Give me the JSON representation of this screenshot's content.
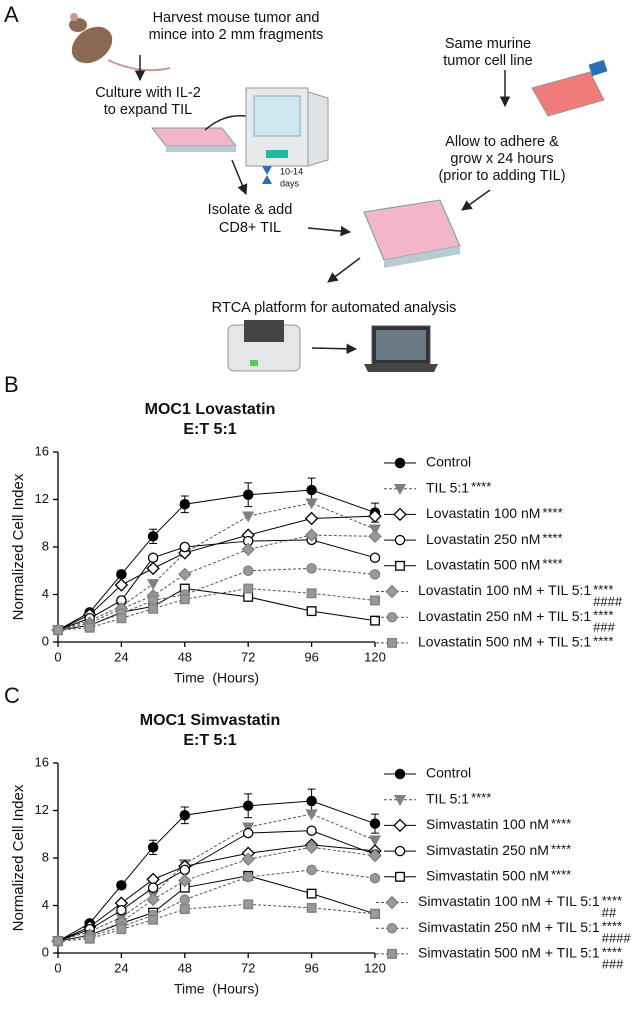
{
  "panel_a": {
    "label": "A",
    "harvest": [
      "Harvest mouse tumor and",
      "mince into 2 mm fragments"
    ],
    "culture": [
      "Culture with IL-2",
      "to expand TIL"
    ],
    "days": [
      "10-14",
      "days"
    ],
    "same_line": [
      "Same murine",
      "tumor cell line"
    ],
    "adhere": [
      "Allow to adhere &",
      "grow x 24 hours",
      "(prior to adding TIL)"
    ],
    "isolate": [
      "Isolate & add",
      "CD8+ TIL"
    ],
    "rtca": "RTCA platform for automated analysis"
  },
  "chart_data": [
    {
      "type": "line",
      "panel_label": "B",
      "title": "MOC1 Lovastatin",
      "subtitle": "E:T 5:1",
      "x_label": "Time  (Hours)",
      "y_label": "Normalized Cell Index",
      "x": [
        0,
        12,
        24,
        36,
        48,
        72,
        96,
        120
      ],
      "xlim": [
        0,
        120
      ],
      "ylim": [
        0,
        16
      ],
      "xticks": [
        0,
        24,
        48,
        72,
        96,
        120
      ],
      "yticks": [
        0,
        4,
        8,
        12,
        16
      ],
      "series": [
        {
          "name": "Control",
          "marker": "circle",
          "color": "#000000",
          "fill": "#000000",
          "dashed": false,
          "values": [
            1,
            2.5,
            5.7,
            8.9,
            11.6,
            12.4,
            12.8,
            10.9
          ],
          "errors": [
            0.1,
            0.2,
            0.3,
            0.6,
            0.7,
            1.0,
            1.0,
            0.8
          ]
        },
        {
          "name": "TIL 5:1",
          "annotation": [
            "****"
          ],
          "marker": "triangle",
          "color": "#808080",
          "fill": "#808080",
          "dashed": true,
          "values": [
            1,
            1.8,
            3.0,
            4.9,
            7.5,
            10.6,
            11.7,
            9.5
          ]
        },
        {
          "name": "Lovastatin 100 nM",
          "annotation": [
            "****"
          ],
          "marker": "diamond",
          "color": "#000000",
          "fill": "#ffffff",
          "dashed": false,
          "values": [
            1,
            2.3,
            4.8,
            6.2,
            7.5,
            9.0,
            10.4,
            10.6
          ]
        },
        {
          "name": "Lovastatin 250 nM",
          "annotation": [
            "****"
          ],
          "marker": "circle",
          "color": "#000000",
          "fill": "#ffffff",
          "dashed": false,
          "values": [
            1,
            2.0,
            3.5,
            7.1,
            8.0,
            8.5,
            8.6,
            7.1
          ]
        },
        {
          "name": "Lovastatin 500 nM",
          "annotation": [
            "****"
          ],
          "marker": "square",
          "color": "#000000",
          "fill": "#ffffff",
          "dashed": false,
          "values": [
            1,
            1.4,
            2.5,
            3.0,
            4.5,
            3.8,
            2.6,
            1.8
          ]
        },
        {
          "name": "Lovastatin 100 nM + TIL 5:1",
          "annotation": [
            "****",
            "####"
          ],
          "marker": "diamond",
          "color": "#808080",
          "fill": "#999999",
          "dashed": true,
          "values": [
            1,
            1.6,
            2.8,
            3.9,
            5.7,
            7.8,
            9.0,
            8.9
          ]
        },
        {
          "name": "Lovastatin 250 nM + TIL 5:1",
          "annotation": [
            "****",
            "###"
          ],
          "marker": "circle",
          "color": "#808080",
          "fill": "#999999",
          "dashed": true,
          "values": [
            1,
            1.4,
            2.4,
            3.5,
            4.0,
            6.0,
            6.2,
            5.7
          ]
        },
        {
          "name": "Lovastatin 500 nM + TIL 5:1",
          "annotation": [
            "****"
          ],
          "marker": "square",
          "color": "#808080",
          "fill": "#999999",
          "dashed": true,
          "values": [
            1,
            1.2,
            2.0,
            2.8,
            3.6,
            4.5,
            4.1,
            3.5
          ]
        }
      ]
    },
    {
      "type": "line",
      "panel_label": "C",
      "title": "MOC1 Simvastatin",
      "subtitle": "E:T 5:1",
      "x_label": "Time  (Hours)",
      "y_label": "Normalized Cell Index",
      "x": [
        0,
        12,
        24,
        36,
        48,
        72,
        96,
        120
      ],
      "xlim": [
        0,
        120
      ],
      "ylim": [
        0,
        16
      ],
      "xticks": [
        0,
        24,
        48,
        72,
        96,
        120
      ],
      "yticks": [
        0,
        4,
        8,
        12,
        16
      ],
      "series": [
        {
          "name": "Control",
          "marker": "circle",
          "color": "#000000",
          "fill": "#000000",
          "dashed": false,
          "values": [
            1,
            2.5,
            5.7,
            8.9,
            11.6,
            12.4,
            12.8,
            10.9
          ],
          "errors": [
            0.1,
            0.2,
            0.3,
            0.6,
            0.7,
            1.0,
            1.0,
            0.8
          ]
        },
        {
          "name": "TIL 5:1",
          "annotation": [
            "****"
          ],
          "marker": "triangle",
          "color": "#808080",
          "fill": "#808080",
          "dashed": true,
          "values": [
            1,
            1.8,
            3.0,
            4.9,
            7.5,
            10.6,
            11.7,
            9.5
          ]
        },
        {
          "name": "Simvastatin 100 nM",
          "annotation": [
            "****"
          ],
          "marker": "diamond",
          "color": "#000000",
          "fill": "#ffffff",
          "dashed": false,
          "values": [
            1,
            2.2,
            4.2,
            6.2,
            7.3,
            8.4,
            9.1,
            8.6
          ]
        },
        {
          "name": "Simvastatin 250 nM",
          "annotation": [
            "****"
          ],
          "marker": "circle",
          "color": "#000000",
          "fill": "#ffffff",
          "dashed": false,
          "values": [
            1,
            2.0,
            3.6,
            5.5,
            7.0,
            10.1,
            10.3,
            8.3
          ]
        },
        {
          "name": "Simvastatin 500 nM",
          "annotation": [
            "****"
          ],
          "marker": "square",
          "color": "#000000",
          "fill": "#ffffff",
          "dashed": false,
          "values": [
            1,
            1.5,
            2.5,
            3.4,
            5.5,
            6.5,
            5.0,
            3.3
          ]
        },
        {
          "name": "Simvastatin 100 nM + TIL 5:1",
          "annotation": [
            "****",
            "##"
          ],
          "marker": "diamond",
          "color": "#808080",
          "fill": "#999999",
          "dashed": true,
          "values": [
            1,
            1.5,
            2.6,
            4.5,
            6.1,
            7.9,
            8.9,
            8.2
          ]
        },
        {
          "name": "Simvastatin 250 nM + TIL 5:1",
          "annotation": [
            "****",
            "####"
          ],
          "marker": "circle",
          "color": "#808080",
          "fill": "#999999",
          "dashed": true,
          "values": [
            1,
            1.4,
            2.2,
            3.2,
            4.5,
            6.4,
            7.0,
            6.3
          ]
        },
        {
          "name": "Simvastatin 500 nM + TIL 5:1",
          "annotation": [
            "****",
            "###"
          ],
          "marker": "square",
          "color": "#808080",
          "fill": "#999999",
          "dashed": true,
          "values": [
            1,
            1.2,
            2.0,
            2.8,
            3.7,
            4.1,
            3.8,
            3.3
          ]
        }
      ]
    }
  ]
}
